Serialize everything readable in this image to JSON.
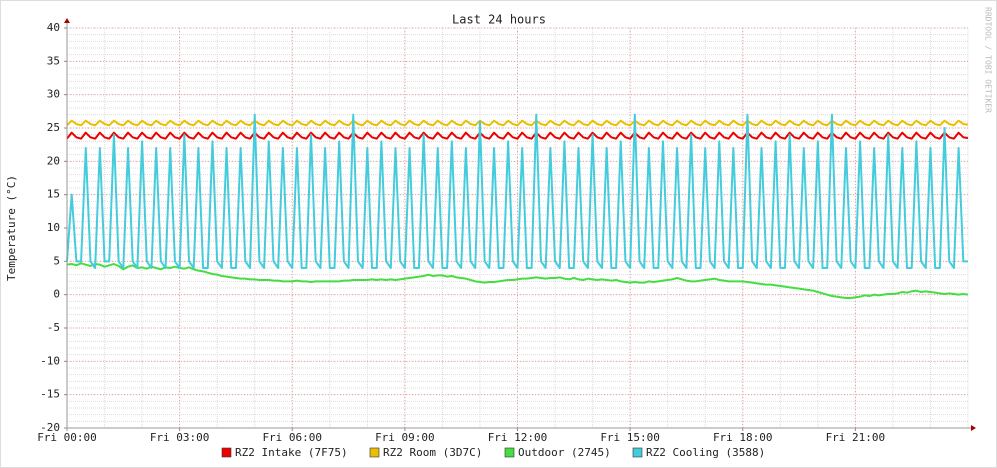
{
  "chart_data": {
    "type": "line",
    "title": "Last 24 hours",
    "y_label": "Temperature (°C)",
    "watermark": "RRDTOOL / TOBI OETIKER",
    "xlim": [
      0,
      24
    ],
    "ylim": [
      -20,
      40
    ],
    "xticks": [
      {
        "value": 0,
        "label": "Fri 00:00"
      },
      {
        "value": 3,
        "label": "Fri 03:00"
      },
      {
        "value": 6,
        "label": "Fri 06:00"
      },
      {
        "value": 9,
        "label": "Fri 09:00"
      },
      {
        "value": 12,
        "label": "Fri 12:00"
      },
      {
        "value": 15,
        "label": "Fri 15:00"
      },
      {
        "value": 18,
        "label": "Fri 18:00"
      },
      {
        "value": 21,
        "label": "Fri 21:00"
      }
    ],
    "yticks": [
      -20,
      -15,
      -10,
      -5,
      0,
      5,
      10,
      15,
      20,
      25,
      30,
      35,
      40
    ],
    "grid": true,
    "x": [
      0,
      0.125,
      0.25,
      0.375,
      0.5,
      0.625,
      0.75,
      0.875,
      1,
      1.125,
      1.25,
      1.375,
      1.5,
      1.625,
      1.75,
      1.875,
      2,
      2.125,
      2.25,
      2.375,
      2.5,
      2.625,
      2.75,
      2.875,
      3,
      3.125,
      3.25,
      3.375,
      3.5,
      3.625,
      3.75,
      3.875,
      4,
      4.125,
      4.25,
      4.375,
      4.5,
      4.625,
      4.75,
      4.875,
      5,
      5.125,
      5.25,
      5.375,
      5.5,
      5.625,
      5.75,
      5.875,
      6,
      6.125,
      6.25,
      6.375,
      6.5,
      6.625,
      6.75,
      6.875,
      7,
      7.125,
      7.25,
      7.375,
      7.5,
      7.625,
      7.75,
      7.875,
      8,
      8.125,
      8.25,
      8.375,
      8.5,
      8.625,
      8.75,
      8.875,
      9,
      9.125,
      9.25,
      9.375,
      9.5,
      9.625,
      9.75,
      9.875,
      10,
      10.125,
      10.25,
      10.375,
      10.5,
      10.625,
      10.75,
      10.875,
      11,
      11.125,
      11.25,
      11.375,
      11.5,
      11.625,
      11.75,
      11.875,
      12,
      12.125,
      12.25,
      12.375,
      12.5,
      12.625,
      12.75,
      12.875,
      13,
      13.125,
      13.25,
      13.375,
      13.5,
      13.625,
      13.75,
      13.875,
      14,
      14.125,
      14.25,
      14.375,
      14.5,
      14.625,
      14.75,
      14.875,
      15,
      15.125,
      15.25,
      15.375,
      15.5,
      15.625,
      15.75,
      15.875,
      16,
      16.125,
      16.25,
      16.375,
      16.5,
      16.625,
      16.75,
      16.875,
      17,
      17.125,
      17.25,
      17.375,
      17.5,
      17.625,
      17.75,
      17.875,
      18,
      18.125,
      18.25,
      18.375,
      18.5,
      18.625,
      18.75,
      18.875,
      19,
      19.125,
      19.25,
      19.375,
      19.5,
      19.625,
      19.75,
      19.875,
      20,
      20.125,
      20.25,
      20.375,
      20.5,
      20.625,
      20.75,
      20.875,
      21,
      21.125,
      21.25,
      21.375,
      21.5,
      21.625,
      21.75,
      21.875,
      22,
      22.125,
      22.25,
      22.375,
      22.5,
      22.625,
      22.75,
      22.875,
      23,
      23.125,
      23.25,
      23.375,
      23.5,
      23.625,
      23.75,
      23.875,
      24
    ],
    "series": [
      {
        "name": "RZ2 Intake (7F75)",
        "color": "#ee0000",
        "values": [
          23.4,
          24.3,
          23.6,
          23.4,
          24.3,
          23.6,
          23.4,
          24.3,
          23.6,
          23.4,
          24.3,
          23.6,
          23.4,
          24.3,
          23.6,
          23.4,
          24.3,
          23.6,
          23.4,
          24.3,
          23.6,
          23.4,
          24.3,
          23.6,
          23.4,
          24.3,
          23.6,
          23.4,
          24.3,
          23.6,
          23.4,
          24.3,
          23.6,
          23.4,
          24.3,
          23.6,
          23.4,
          24.3,
          23.6,
          23.4,
          24.3,
          23.6,
          23.4,
          24.3,
          23.6,
          23.4,
          24.3,
          23.6,
          23.4,
          24.3,
          23.6,
          23.4,
          24.3,
          23.6,
          23.4,
          24.3,
          23.6,
          23.4,
          24.3,
          23.6,
          23.4,
          24.3,
          23.6,
          23.4,
          24.3,
          23.6,
          23.4,
          24.3,
          23.6,
          23.4,
          24.3,
          23.6,
          23.4,
          24.3,
          23.6,
          23.4,
          24.3,
          23.6,
          23.4,
          24.3,
          23.6,
          23.4,
          24.3,
          23.6,
          23.4,
          24.3,
          23.6,
          23.4,
          24.3,
          23.6,
          23.4,
          24.3,
          23.6,
          23.4,
          24.3,
          23.6,
          23.4,
          24.3,
          23.6,
          23.4,
          24.3,
          23.6,
          23.4,
          24.3,
          23.6,
          23.4,
          24.3,
          23.6,
          23.4,
          24.3,
          23.6,
          23.4,
          24.3,
          23.6,
          23.4,
          24.3,
          23.6,
          23.4,
          24.3,
          23.6,
          23.4,
          24.3,
          23.6,
          23.4,
          24.3,
          23.6,
          23.4,
          24.3,
          23.6,
          23.4,
          24.3,
          23.6,
          23.4,
          24.3,
          23.6,
          23.4,
          24.3,
          23.6,
          23.4,
          24.3,
          23.6,
          23.4,
          24.3,
          23.6,
          23.4,
          24.3,
          23.6,
          23.4,
          24.3,
          23.6,
          23.4,
          24.3,
          23.6,
          23.4,
          24.3,
          23.6,
          23.4,
          24.3,
          23.6,
          23.4,
          24.3,
          23.6,
          23.4,
          24.3,
          23.6,
          23.4,
          24.3,
          23.6,
          23.4,
          24.3,
          23.6,
          23.4,
          24.3,
          23.6,
          23.4,
          24.3,
          23.6,
          23.4,
          24.3,
          23.6,
          23.4,
          24.3,
          23.6,
          23.4,
          24.3,
          23.6,
          23.4,
          24.3,
          23.6,
          23.4,
          24.3,
          23.6,
          23.5
        ]
      },
      {
        "name": "RZ2 Room (3D7C)",
        "color": "#e8c000",
        "values": [
          25.4,
          26.1,
          25.6,
          25.4,
          26.1,
          25.6,
          25.4,
          26.1,
          25.6,
          25.4,
          26.1,
          25.6,
          25.4,
          26.1,
          25.6,
          25.4,
          26.1,
          25.6,
          25.4,
          26.1,
          25.6,
          25.4,
          26.1,
          25.6,
          25.4,
          26.1,
          25.6,
          25.4,
          26.1,
          25.6,
          25.4,
          26.1,
          25.6,
          25.4,
          26.1,
          25.6,
          25.4,
          26.1,
          25.6,
          25.4,
          26.1,
          25.6,
          25.4,
          26.1,
          25.6,
          25.4,
          26.1,
          25.6,
          25.4,
          26.1,
          25.6,
          25.4,
          26.1,
          25.6,
          25.4,
          26.1,
          25.6,
          25.4,
          26.1,
          25.6,
          25.4,
          26.1,
          25.6,
          25.4,
          26.1,
          25.6,
          25.4,
          26.1,
          25.6,
          25.4,
          26.1,
          25.6,
          25.4,
          26.1,
          25.6,
          25.4,
          26.1,
          25.6,
          25.4,
          26.1,
          25.6,
          25.4,
          26.1,
          25.6,
          25.4,
          26.1,
          25.6,
          25.4,
          26.1,
          25.6,
          25.4,
          26.1,
          25.6,
          25.4,
          26.1,
          25.6,
          25.4,
          26.1,
          25.6,
          25.4,
          26.1,
          25.6,
          25.4,
          26.1,
          25.6,
          25.4,
          26.1,
          25.6,
          25.4,
          26.1,
          25.6,
          25.4,
          26.1,
          25.6,
          25.4,
          26.1,
          25.6,
          25.4,
          26.1,
          25.6,
          25.4,
          26.1,
          25.6,
          25.4,
          26.1,
          25.6,
          25.4,
          26.1,
          25.6,
          25.4,
          26.1,
          25.6,
          25.4,
          26.1,
          25.6,
          25.4,
          26.1,
          25.6,
          25.4,
          26.1,
          25.6,
          25.4,
          26.1,
          25.6,
          25.4,
          26.1,
          25.6,
          25.4,
          26.1,
          25.6,
          25.4,
          26.1,
          25.6,
          25.4,
          26.1,
          25.6,
          25.4,
          26.1,
          25.6,
          25.4,
          26.1,
          25.6,
          25.4,
          26.1,
          25.6,
          25.4,
          26.1,
          25.6,
          25.4,
          26.1,
          25.6,
          25.4,
          26.1,
          25.6,
          25.4,
          26.1,
          25.6,
          25.4,
          26.1,
          25.6,
          25.4,
          26.1,
          25.6,
          25.4,
          26.1,
          25.6,
          25.4,
          26.1,
          25.6,
          25.4,
          26.1,
          25.6,
          25.5
        ]
      },
      {
        "name": "Outdoor (2745)",
        "color": "#44dd44",
        "values": [
          4.5,
          4.6,
          4.4,
          4.7,
          4.5,
          4.3,
          4.6,
          4.5,
          4.2,
          4.4,
          4.6,
          4.3,
          3.8,
          4.2,
          4.4,
          4.0,
          4.1,
          3.9,
          4.2,
          4.0,
          3.8,
          4.1,
          4.0,
          4.2,
          4.0,
          3.9,
          4.1,
          3.8,
          3.6,
          3.5,
          3.3,
          3.1,
          3.0,
          2.8,
          2.7,
          2.6,
          2.5,
          2.4,
          2.4,
          2.3,
          2.3,
          2.2,
          2.2,
          2.2,
          2.1,
          2.1,
          2.0,
          2.0,
          2.0,
          2.1,
          2.0,
          2.0,
          1.9,
          2.0,
          2.0,
          2.0,
          2.0,
          2.0,
          2.0,
          2.1,
          2.1,
          2.2,
          2.2,
          2.2,
          2.2,
          2.3,
          2.2,
          2.3,
          2.2,
          2.3,
          2.2,
          2.3,
          2.4,
          2.5,
          2.6,
          2.7,
          2.8,
          3.0,
          2.8,
          2.9,
          2.9,
          2.7,
          2.8,
          2.6,
          2.5,
          2.4,
          2.2,
          2.0,
          1.9,
          1.8,
          1.9,
          1.9,
          2.0,
          2.1,
          2.2,
          2.2,
          2.3,
          2.4,
          2.4,
          2.5,
          2.6,
          2.5,
          2.4,
          2.5,
          2.5,
          2.6,
          2.4,
          2.3,
          2.5,
          2.3,
          2.2,
          2.4,
          2.3,
          2.2,
          2.3,
          2.2,
          2.1,
          2.2,
          2.0,
          1.9,
          1.8,
          1.9,
          1.8,
          1.8,
          2.0,
          1.9,
          2.0,
          2.1,
          2.2,
          2.3,
          2.5,
          2.3,
          2.1,
          2.0,
          2.0,
          2.1,
          2.2,
          2.3,
          2.4,
          2.2,
          2.1,
          2.0,
          2.0,
          2.0,
          2.0,
          1.9,
          1.8,
          1.7,
          1.6,
          1.5,
          1.5,
          1.4,
          1.3,
          1.2,
          1.1,
          1.0,
          0.9,
          0.8,
          0.7,
          0.6,
          0.4,
          0.2,
          0.0,
          -0.2,
          -0.3,
          -0.4,
          -0.5,
          -0.5,
          -0.4,
          -0.3,
          -0.1,
          -0.2,
          0.0,
          -0.1,
          0.0,
          0.1,
          0.1,
          0.2,
          0.4,
          0.3,
          0.5,
          0.6,
          0.4,
          0.5,
          0.4,
          0.3,
          0.2,
          0.1,
          0.2,
          0.1,
          0.0,
          0.1,
          0.0
        ]
      },
      {
        "name": "RZ2 Cooling (3588)",
        "color": "#44ccdd",
        "values": [
          5,
          15,
          5,
          5,
          22,
          5,
          4,
          22,
          5,
          5,
          24,
          5,
          4,
          22,
          5,
          4,
          23,
          5,
          4,
          22,
          5,
          4,
          22,
          5,
          4,
          24,
          5,
          4,
          22,
          4,
          4,
          23,
          5,
          4,
          22,
          4,
          4,
          22,
          5,
          4,
          27,
          5,
          4,
          23,
          5,
          4,
          22,
          5,
          4,
          22,
          4,
          4,
          24,
          5,
          4,
          22,
          4,
          4,
          23,
          5,
          4,
          27,
          5,
          4,
          22,
          4,
          4,
          23,
          5,
          4,
          22,
          5,
          4,
          22,
          4,
          4,
          24,
          5,
          4,
          22,
          4,
          4,
          23,
          5,
          4,
          22,
          5,
          4,
          26,
          5,
          4,
          22,
          4,
          4,
          23,
          5,
          4,
          22,
          4,
          4,
          27,
          5,
          4,
          22,
          5,
          4,
          23,
          4,
          4,
          22,
          5,
          4,
          24,
          5,
          4,
          22,
          4,
          4,
          23,
          5,
          4,
          27,
          5,
          4,
          22,
          4,
          4,
          23,
          5,
          4,
          22,
          5,
          4,
          24,
          4,
          4,
          22,
          5,
          4,
          23,
          5,
          4,
          22,
          4,
          4,
          27,
          5,
          4,
          22,
          5,
          4,
          23,
          4,
          4,
          24,
          5,
          4,
          22,
          5,
          4,
          23,
          4,
          4,
          27,
          5,
          4,
          22,
          5,
          4,
          23,
          4,
          4,
          22,
          5,
          4,
          24,
          5,
          4,
          22,
          4,
          4,
          23,
          5,
          4,
          22,
          4,
          4,
          25,
          5,
          4,
          22,
          5,
          5
        ]
      }
    ]
  }
}
